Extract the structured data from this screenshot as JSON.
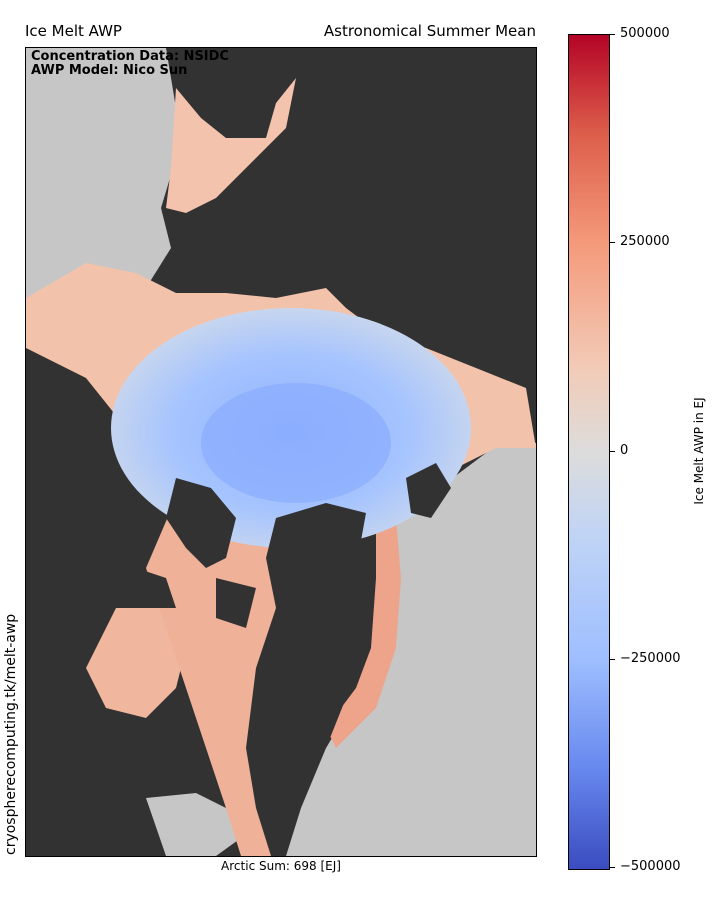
{
  "title_left": "Ice Melt AWP",
  "title_right": "Astronomical Summer Mean",
  "credit_line1": "Concentration Data: NSIDC",
  "credit_line2": "AWP Model: Nico Sun",
  "sum_text": "Arctic Sum: 698 [EJ]",
  "side_url": "cryospherecomputing.tk/melt-awp",
  "colorbar": {
    "label": "Ice Melt AWP in EJ",
    "range": [
      -500000,
      500000
    ],
    "ticks": [
      "500000",
      "250000",
      "0",
      "−250000",
      "−500000"
    ]
  },
  "colors": {
    "land": "#323232",
    "ocean_no_ice": "#c6c6c6",
    "negative": "#3b4cc0",
    "neutral": "#dddcdc",
    "positive": "#b40426"
  }
}
